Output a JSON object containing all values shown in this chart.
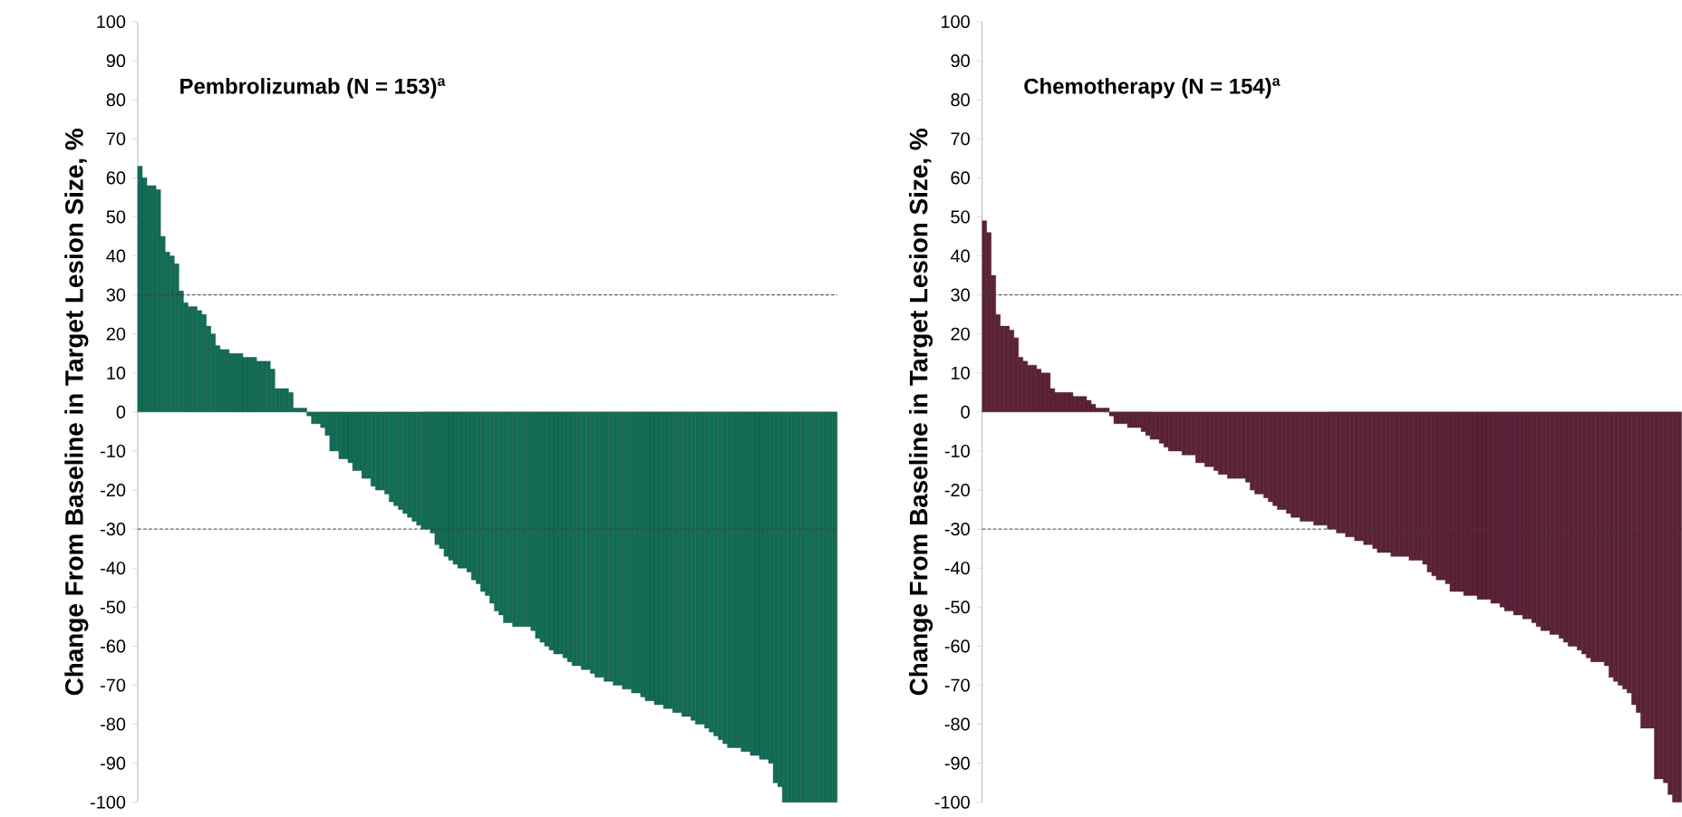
{
  "chart_data": [
    {
      "type": "bar",
      "title": "Pembrolizumab (N = 153)$^{a}$",
      "ylabel": "Change From Baseline in Target Lesion Size, %",
      "color": "#136c55",
      "categories": [
        null,
        null,
        null,
        null,
        null,
        null,
        null,
        null,
        null,
        null,
        null,
        null,
        null,
        null,
        null,
        null,
        null,
        null,
        null,
        null,
        null,
        null,
        null,
        null,
        null,
        null,
        null,
        null,
        null,
        null,
        null,
        null,
        null,
        null,
        null,
        null,
        null,
        null,
        null,
        null,
        null,
        null,
        null,
        null,
        null,
        null,
        null,
        null,
        null,
        null,
        null,
        null,
        null,
        null,
        null,
        null,
        null,
        null,
        null,
        null,
        null,
        null,
        null,
        null,
        null,
        null,
        null,
        null,
        null,
        null,
        null,
        null,
        null,
        null,
        null,
        null,
        null,
        null,
        null,
        null,
        null,
        null,
        null,
        null,
        null,
        null,
        null,
        null,
        null,
        null,
        null,
        null,
        null,
        null,
        null,
        null,
        null,
        null,
        null,
        null,
        null,
        null,
        null,
        null,
        null,
        null,
        null,
        null,
        null,
        null,
        null,
        null,
        null,
        null,
        null,
        null,
        null,
        null,
        null,
        null,
        null,
        null,
        null,
        null,
        null,
        null,
        null,
        null,
        null,
        null,
        null,
        null,
        null,
        null,
        null,
        null,
        null,
        null,
        null,
        null,
        null,
        null,
        null,
        null,
        null,
        null,
        null,
        null,
        null,
        null,
        null,
        null,
        null
      ],
      "values": [
        63,
        60,
        58,
        58,
        57,
        45,
        41,
        40,
        38,
        31,
        28,
        27,
        27,
        26,
        25,
        22,
        20,
        17,
        16,
        16,
        15,
        15,
        15,
        14,
        14,
        14,
        13,
        13,
        13,
        11,
        6,
        6,
        6,
        5,
        1,
        1,
        1,
        -1,
        -3,
        -3,
        -4,
        -6,
        -10,
        -10,
        -12,
        -12,
        -13,
        -15,
        -15,
        -17,
        -17,
        -19,
        -20,
        -20,
        -21,
        -23,
        -24,
        -25,
        -26,
        -27,
        -28,
        -29,
        -30,
        -30,
        -31,
        -34,
        -35,
        -37,
        -38,
        -39,
        -40,
        -40,
        -41,
        -43,
        -44,
        -46,
        -47,
        -49,
        -51,
        -52,
        -54,
        -54,
        -55,
        -55,
        -55,
        -55,
        -56,
        -58,
        -59,
        -60,
        -61,
        -62,
        -62,
        -63,
        -64,
        -65,
        -65,
        -66,
        -66,
        -67,
        -68,
        -68,
        -69,
        -69,
        -70,
        -70,
        -71,
        -71,
        -72,
        -72,
        -73,
        -74,
        -74,
        -75,
        -75,
        -76,
        -76,
        -77,
        -77,
        -78,
        -78,
        -79,
        -80,
        -80,
        -81,
        -82,
        -83,
        -84,
        -85,
        -86,
        -86,
        -86,
        -87,
        -87,
        -88,
        -88,
        -89,
        -89,
        -90,
        -95,
        -96,
        -100,
        -100,
        -100,
        -100,
        -100,
        -100,
        -100,
        -100,
        -100,
        -100,
        -100,
        -100
      ],
      "ylim": [
        -100,
        100
      ],
      "yticks": [
        -100,
        -90,
        -80,
        -70,
        -60,
        -50,
        -40,
        -30,
        -20,
        -10,
        0,
        10,
        20,
        30,
        40,
        50,
        60,
        70,
        80,
        90,
        100
      ],
      "ref_lines": [
        {
          "axis": "y",
          "value": 30,
          "line_style": "dashed",
          "color": "#404040"
        },
        {
          "axis": "y",
          "value": -30,
          "line_style": "dashed",
          "color": "#404040"
        }
      ]
    },
    {
      "type": "bar",
      "title": "Chemotherapy (N = 154)$^{a}$",
      "ylabel": "Change From Baseline in Target Lesion Size, %",
      "color": "#5c2238",
      "categories": [
        null,
        null,
        null,
        null,
        null,
        null,
        null,
        null,
        null,
        null,
        null,
        null,
        null,
        null,
        null,
        null,
        null,
        null,
        null,
        null,
        null,
        null,
        null,
        null,
        null,
        null,
        null,
        null,
        null,
        null,
        null,
        null,
        null,
        null,
        null,
        null,
        null,
        null,
        null,
        null,
        null,
        null,
        null,
        null,
        null,
        null,
        null,
        null,
        null,
        null,
        null,
        null,
        null,
        null,
        null,
        null,
        null,
        null,
        null,
        null,
        null,
        null,
        null,
        null,
        null,
        null,
        null,
        null,
        null,
        null,
        null,
        null,
        null,
        null,
        null,
        null,
        null,
        null,
        null,
        null,
        null,
        null,
        null,
        null,
        null,
        null,
        null,
        null,
        null,
        null,
        null,
        null,
        null,
        null,
        null,
        null,
        null,
        null,
        null,
        null,
        null,
        null,
        null,
        null,
        null,
        null,
        null,
        null,
        null,
        null,
        null,
        null,
        null,
        null,
        null,
        null,
        null,
        null,
        null,
        null,
        null,
        null,
        null,
        null,
        null,
        null,
        null,
        null,
        null,
        null,
        null,
        null,
        null,
        null,
        null,
        null,
        null,
        null,
        null,
        null,
        null,
        null,
        null,
        null,
        null,
        null,
        null,
        null,
        null,
        null,
        null,
        null,
        null,
        null
      ],
      "values": [
        49,
        46,
        35,
        25,
        22,
        22,
        21,
        19,
        14,
        13,
        12,
        12,
        11,
        10,
        10,
        6,
        5,
        5,
        5,
        5,
        4,
        4,
        4,
        3,
        2,
        1,
        1,
        1,
        -1,
        -3,
        -3,
        -3,
        -4,
        -4,
        -4,
        -5,
        -6,
        -7,
        -7,
        -8,
        -9,
        -10,
        -10,
        -10,
        -11,
        -11,
        -11,
        -13,
        -13,
        -14,
        -14,
        -15,
        -16,
        -16,
        -17,
        -17,
        -17,
        -17,
        -18,
        -20,
        -21,
        -21,
        -22,
        -23,
        -24,
        -25,
        -25,
        -26,
        -27,
        -27,
        -28,
        -28,
        -28,
        -29,
        -29,
        -29,
        -30,
        -30,
        -31,
        -31,
        -32,
        -32,
        -33,
        -33,
        -34,
        -34,
        -35,
        -36,
        -36,
        -36,
        -37,
        -37,
        -37,
        -37,
        -38,
        -38,
        -38,
        -39,
        -41,
        -42,
        -43,
        -43,
        -44,
        -46,
        -46,
        -46,
        -47,
        -47,
        -47,
        -48,
        -48,
        -48,
        -49,
        -49,
        -50,
        -51,
        -51,
        -52,
        -52,
        -53,
        -53,
        -54,
        -55,
        -56,
        -56,
        -57,
        -57,
        -58,
        -59,
        -60,
        -60,
        -61,
        -62,
        -63,
        -64,
        -64,
        -64,
        -65,
        -68,
        -69,
        -70,
        -71,
        -72,
        -75,
        -77,
        -81,
        -81,
        -81,
        -94,
        -94,
        -95,
        -98,
        -100,
        -100
      ],
      "ylim": [
        -100,
        100
      ],
      "yticks": [
        -100,
        -90,
        -80,
        -70,
        -60,
        -50,
        -40,
        -30,
        -20,
        -10,
        0,
        10,
        20,
        30,
        40,
        50,
        60,
        70,
        80,
        90,
        100
      ],
      "ref_lines": [
        {
          "axis": "y",
          "value": 30,
          "line_style": "dashed",
          "color": "#404040"
        },
        {
          "axis": "y",
          "value": -30,
          "line_style": "dashed",
          "color": "#404040"
        }
      ]
    }
  ]
}
